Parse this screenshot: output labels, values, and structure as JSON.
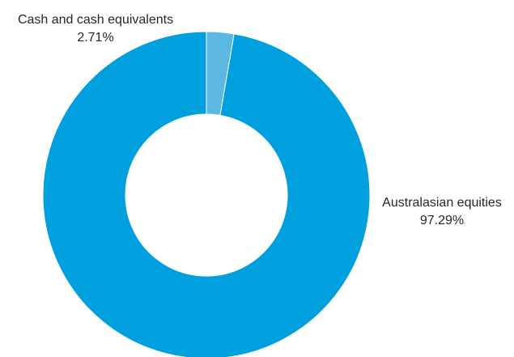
{
  "chart_data": {
    "type": "pie",
    "style": "donut",
    "slices": [
      {
        "label": "Cash and cash equivalents",
        "value": 2.71,
        "value_label": "2.71%",
        "color": "#5bb8e0"
      },
      {
        "label": "Australasian equities",
        "value": 97.29,
        "value_label": "97.29%",
        "color": "#00a0df"
      }
    ],
    "legend": "none",
    "background": "#ffffff"
  }
}
